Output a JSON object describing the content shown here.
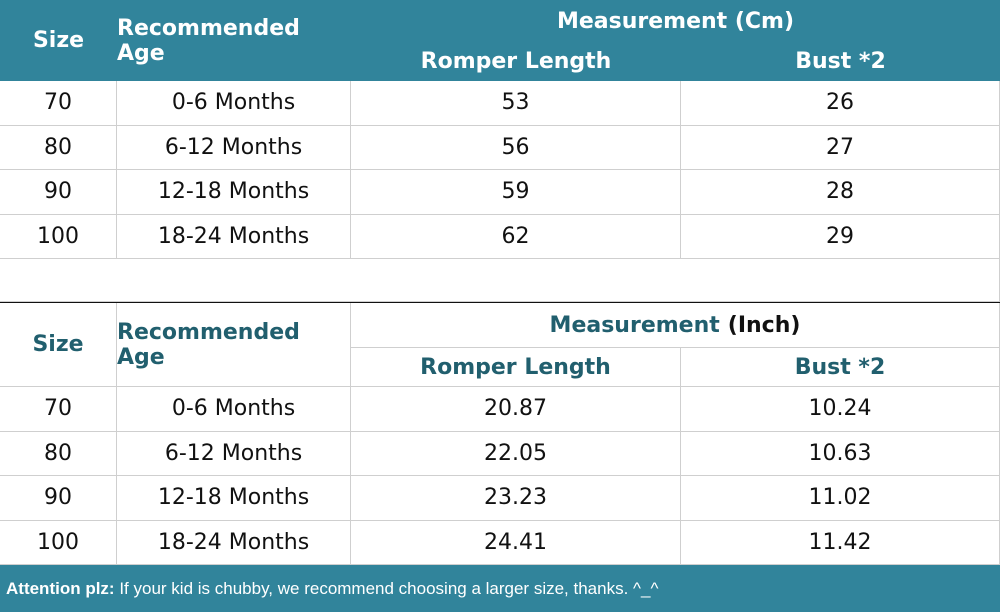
{
  "table_cm": {
    "header": {
      "size": "Size",
      "age": "Recommended Age",
      "measurement": "Measurement (Cm)",
      "romper": "Romper Length",
      "bust": "Bust *2"
    },
    "rows": [
      [
        "70",
        "0-6 Months",
        "53",
        "26"
      ],
      [
        "80",
        "6-12 Months",
        "56",
        "27"
      ],
      [
        "90",
        "12-18 Months",
        "59",
        "28"
      ],
      [
        "100",
        "18-24 Months",
        "62",
        "29"
      ]
    ]
  },
  "table_inch": {
    "header": {
      "size": "Size",
      "age": "Recommended Age",
      "measurement": "Measurement",
      "unit": "(Inch)",
      "romper": "Romper Length",
      "bust": "Bust *2"
    },
    "rows": [
      [
        "70",
        "0-6 Months",
        "20.87",
        "10.24"
      ],
      [
        "80",
        "6-12 Months",
        "22.05",
        "10.63"
      ],
      [
        "90",
        "12-18 Months",
        "23.23",
        "11.02"
      ],
      [
        "100",
        "18-24 Months",
        "24.41",
        "11.42"
      ]
    ]
  },
  "footer": {
    "label": "Attention plz:",
    "text": "If your kid is chubby, we recommend choosing a larger size, thanks. ^_^"
  }
}
